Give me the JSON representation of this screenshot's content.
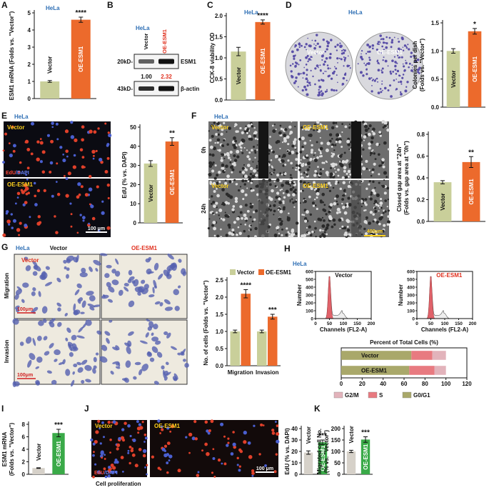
{
  "panels": {
    "A": {
      "letter": "A",
      "cell_line": "HeLa"
    },
    "B": {
      "letter": "B",
      "cell_line": "HeLa",
      "lanes": [
        "Vector",
        "OE-ESM1"
      ],
      "rows": [
        {
          "size": "20kD-",
          "protein": "ESM1"
        },
        {
          "size": "43kD-",
          "protein": "β-actin"
        }
      ],
      "quantification": [
        "1.00",
        "2.32"
      ]
    },
    "C": {
      "letter": "C",
      "cell_line": "HeLa"
    },
    "D": {
      "letter": "D",
      "cell_line": "HeLa",
      "plates": [
        "Vector",
        "OE-ESM1"
      ]
    },
    "E": {
      "letter": "E",
      "cell_line": "HeLa",
      "images": [
        "Vector",
        "OE-ESM1"
      ],
      "stain": [
        "EdU",
        "/DAPI"
      ],
      "scale": "100 μm"
    },
    "F": {
      "letter": "F",
      "cell_line": "HeLa",
      "columns": [
        "Vector",
        "OE-ESM1"
      ],
      "times": [
        "0h",
        "24h"
      ],
      "scale": "400μm"
    },
    "G": {
      "letter": "G",
      "cell_line": "HeLa",
      "columns": [
        "Vector",
        "OE-ESM1"
      ],
      "rows": [
        "Migration",
        "Invasion"
      ],
      "inset": "Vector",
      "scales": [
        "100μm",
        "100μm"
      ]
    },
    "H": {
      "letter": "H",
      "cell_line": "HeLa"
    },
    "I": {
      "letter": "I"
    },
    "J": {
      "letter": "J",
      "images": [
        "Vector",
        "OE-ESM1"
      ],
      "stain": [
        "EdU",
        "/DAPI"
      ],
      "scale": "100 μm",
      "caption": "Cell proliferation"
    },
    "K": {
      "letter": "K"
    }
  },
  "chart_data": [
    {
      "type": "bar",
      "ylabel": "ESM1 mRNA (Folds vs. \"Vector\")",
      "categories": [
        "Vector",
        "OE-ESM1"
      ],
      "values": [
        1.0,
        4.6
      ],
      "errors": [
        0.05,
        0.15
      ],
      "significance": [
        null,
        "****"
      ],
      "colors": [
        "#c9cf9a",
        "#ec6a2c"
      ],
      "ylim": [
        0,
        5
      ],
      "yticks": [
        0,
        1,
        2,
        3,
        4,
        5
      ]
    },
    {
      "type": "bar",
      "ylabel": "CCK-8 viability OD",
      "categories": [
        "Vector",
        "OE-ESM1"
      ],
      "values": [
        1.15,
        1.85
      ],
      "errors": [
        0.1,
        0.05
      ],
      "significance": [
        null,
        "****"
      ],
      "colors": [
        "#c9cf9a",
        "#ec6a2c"
      ],
      "ylim": [
        0,
        2
      ],
      "yticks": [
        {
          "value": 0,
          "label": "0.0"
        },
        {
          "value": 0.5,
          "label": "0.5"
        },
        {
          "value": 1,
          "label": "1.0"
        },
        {
          "value": 1.5,
          "label": "1.5"
        },
        {
          "value": 2,
          "label": "2.0"
        }
      ]
    },
    {
      "type": "bar",
      "ylabel": [
        "Colonies per dish",
        "(Folds vs. \"Vector\")"
      ],
      "categories": [
        "Vector",
        "OE-ESM1"
      ],
      "values": [
        1.0,
        1.35
      ],
      "errors": [
        0.04,
        0.05
      ],
      "significance": [
        null,
        "*"
      ],
      "colors": [
        "#c9cf9a",
        "#ec6a2c"
      ],
      "ylim": [
        0,
        1.5
      ],
      "yticks": [
        {
          "value": 0,
          "label": "0.0"
        },
        {
          "value": 0.5,
          "label": "0.5"
        },
        {
          "value": 1,
          "label": "1.0"
        },
        {
          "value": 1.5,
          "label": "1.5"
        }
      ]
    },
    {
      "type": "bar",
      "ylabel": "EdU (% vs. DAPI)",
      "categories": [
        "Vector",
        "OE-ESM1"
      ],
      "values": [
        31,
        42.5
      ],
      "errors": [
        1.5,
        2
      ],
      "significance": [
        null,
        "**"
      ],
      "colors": [
        "#c9cf9a",
        "#ec6a2c"
      ],
      "ylim": [
        0,
        50
      ],
      "yticks": [
        0,
        10,
        20,
        30,
        40,
        50
      ]
    },
    {
      "type": "bar",
      "ylabel": [
        "Closed gap area at \"24h\"",
        "(Folds vs. gap area at \"0h\")"
      ],
      "categories": [
        "Vector",
        "OE-ESM1"
      ],
      "values": [
        0.36,
        0.545
      ],
      "errors": [
        0.015,
        0.05
      ],
      "significance": [
        null,
        "**"
      ],
      "colors": [
        "#c9cf9a",
        "#ec6a2c"
      ],
      "ylim": [
        0,
        0.8
      ],
      "yticks": [
        {
          "value": 0,
          "label": "0.0"
        },
        {
          "value": 0.2,
          "label": "0.2"
        },
        {
          "value": 0.4,
          "label": "0.4"
        },
        {
          "value": 0.6,
          "label": "0.6"
        },
        {
          "value": 0.8,
          "label": "0.8"
        }
      ]
    },
    {
      "type": "grouped-bar",
      "ylabel": "No. of cells (Folds vs. \"Vector\")",
      "categories": [
        "Migration",
        "Invasion"
      ],
      "series": [
        {
          "name": "Vector",
          "color": "#c9cf9a",
          "values": [
            1.0,
            1.0
          ],
          "errors": [
            0.04,
            0.04
          ]
        },
        {
          "name": "OE-ESM1",
          "color": "#ec6a2c",
          "values": [
            2.1,
            1.43
          ],
          "errors": [
            0.12,
            0.07
          ],
          "significance": [
            "****",
            "***"
          ]
        }
      ],
      "ylim": [
        0,
        2.5
      ],
      "yticks": [
        {
          "value": 0,
          "label": "0.0"
        },
        {
          "value": 0.5,
          "label": "0.5"
        },
        {
          "value": 1,
          "label": "1.0"
        },
        {
          "value": 1.5,
          "label": "1.5"
        },
        {
          "value": 2,
          "label": "2.0"
        },
        {
          "value": 2.5,
          "label": "2.5"
        }
      ]
    },
    {
      "type": "flow-histogram",
      "title": "Vector",
      "xlabel": "Channels (FL2-A)",
      "ylabel": "Number",
      "xlim": [
        0,
        200
      ],
      "xticks": [
        0,
        50,
        100,
        150,
        200
      ],
      "ylim": [
        0,
        600
      ],
      "yticks": [
        0,
        100,
        200,
        300,
        400,
        500,
        600
      ]
    },
    {
      "type": "flow-histogram",
      "title": "OE-ESM1",
      "xlabel": "Channels (FL2-A)",
      "ylabel": "Number",
      "xlim": [
        0,
        200
      ],
      "xticks": [
        0,
        50,
        100,
        150,
        200
      ],
      "ylim": [
        0,
        600
      ],
      "yticks": [
        0,
        100,
        200,
        300,
        400,
        500,
        600
      ]
    },
    {
      "type": "stacked-bar",
      "title": "Percent of Total Cells (%)",
      "categories": [
        "Vector",
        "OE-ESM1"
      ],
      "series": [
        {
          "name": "G2/M",
          "color": "#e2b3bb",
          "values": [
            13,
            11
          ]
        },
        {
          "name": "S",
          "color": "#e87a80",
          "values": [
            20,
            24
          ]
        },
        {
          "name": "G0/G1",
          "color": "#a9a86a",
          "values": [
            67,
            65
          ]
        }
      ],
      "xlim": [
        0,
        120
      ],
      "xticks": [
        0,
        20,
        40,
        60,
        80,
        100,
        120
      ]
    },
    {
      "type": "bar",
      "ylabel": [
        "ESM1 mRNA",
        "(Folds vs. \"Vector\")"
      ],
      "categories": [
        "Vector",
        "OE-ESM1"
      ],
      "values": [
        1.0,
        6.6
      ],
      "errors": [
        0.05,
        0.6
      ],
      "significance": [
        null,
        "***"
      ],
      "colors": [
        "#d6d1c9",
        "#3aaa48"
      ],
      "ylim": [
        0,
        8
      ],
      "yticks": [
        0,
        2,
        4,
        6,
        8
      ]
    },
    {
      "type": "bar",
      "ylabel": "EdU (% vs. DAPI)",
      "categories": [
        "Vector",
        "OE-ESM1"
      ],
      "values": [
        19,
        28
      ],
      "errors": [
        1.5,
        2
      ],
      "significance": [
        null,
        "***"
      ],
      "colors": [
        "#d6d1c9",
        "#3aaa48"
      ],
      "ylim": [
        0,
        40
      ],
      "yticks": [
        0,
        10,
        20,
        30,
        40
      ]
    },
    {
      "type": "bar",
      "ylabel": [
        "Migrated cell No.",
        "(% vs. \"Vector\")"
      ],
      "categories": [
        "Vector",
        "OE-ESM1"
      ],
      "values": [
        100,
        152
      ],
      "errors": [
        5,
        12
      ],
      "significance": [
        null,
        "***"
      ],
      "colors": [
        "#d6d1c9",
        "#3aaa48"
      ],
      "ylim": [
        0,
        200
      ],
      "yticks": [
        0,
        50,
        100,
        150,
        200
      ]
    }
  ]
}
